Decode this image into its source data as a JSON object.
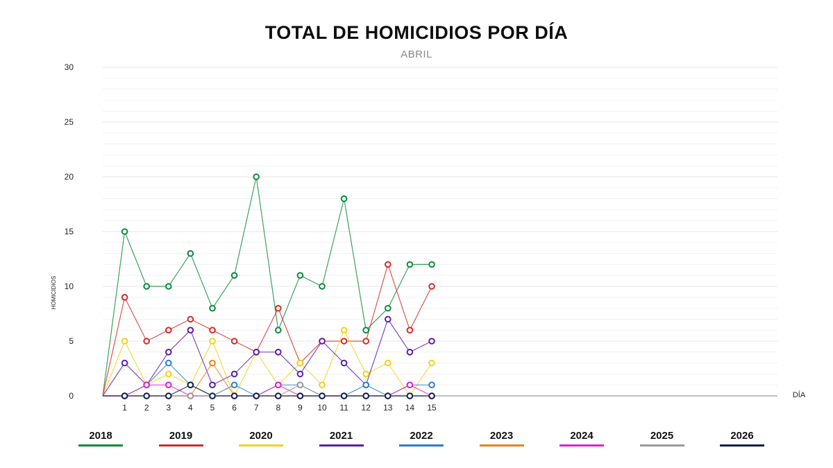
{
  "title": "TOTAL DE HOMICIDIOS POR DÍA",
  "subtitle": "ABRIL",
  "chart_data": {
    "type": "line",
    "title": "TOTAL DE HOMICIDIOS POR DÍA",
    "subtitle": "ABRIL",
    "xlabel": "DÍA",
    "ylabel": "HOMICIDIOS",
    "ylim": [
      0,
      30
    ],
    "yticks": [
      0,
      5,
      10,
      15,
      20,
      25,
      30
    ],
    "x": [
      1,
      2,
      3,
      4,
      5,
      6,
      7,
      8,
      9,
      10,
      11,
      12,
      13,
      14,
      15
    ],
    "grid": true,
    "legend_position": "bottom",
    "series": [
      {
        "name": "2018",
        "color": "#0a8a3a",
        "values": [
          15,
          10,
          10,
          13,
          8,
          11,
          20,
          6,
          11,
          10,
          18,
          6,
          8,
          12,
          12
        ]
      },
      {
        "name": "2019",
        "color": "#d42a2a",
        "values": [
          9,
          5,
          6,
          7,
          6,
          5,
          4,
          8,
          3,
          5,
          5,
          5,
          12,
          6,
          10
        ]
      },
      {
        "name": "2020",
        "color": "#f2d21b",
        "values": [
          5,
          1,
          2,
          1,
          5,
          0,
          4,
          1,
          3,
          1,
          6,
          2,
          3,
          0,
          3
        ]
      },
      {
        "name": "2021",
        "color": "#5a1fa6",
        "values": [
          3,
          1,
          4,
          6,
          1,
          2,
          4,
          4,
          2,
          5,
          3,
          1,
          7,
          4,
          5
        ]
      },
      {
        "name": "2022",
        "color": "#2a7fd4",
        "values": [
          0,
          1,
          3,
          1,
          0,
          1,
          0,
          1,
          1,
          0,
          0,
          1,
          0,
          1,
          1
        ]
      },
      {
        "name": "2023",
        "color": "#e8821a",
        "values": [
          0,
          0,
          0,
          0,
          3,
          0,
          0,
          0,
          0,
          0,
          0,
          0,
          0,
          0,
          0
        ]
      },
      {
        "name": "2024",
        "color": "#e020d0",
        "values": [
          0,
          1,
          1,
          0,
          0,
          0,
          0,
          1,
          0,
          0,
          0,
          0,
          0,
          1,
          0
        ]
      },
      {
        "name": "2025",
        "color": "#9a9a9a",
        "values": [
          0,
          0,
          0,
          0,
          0,
          0,
          0,
          0,
          1,
          0,
          0,
          0,
          0,
          0,
          0
        ]
      },
      {
        "name": "2026",
        "color": "#0d1f4f",
        "values": [
          0,
          0,
          0,
          1,
          0,
          0,
          0,
          0,
          0,
          0,
          0,
          0,
          0,
          0,
          0
        ]
      }
    ]
  }
}
